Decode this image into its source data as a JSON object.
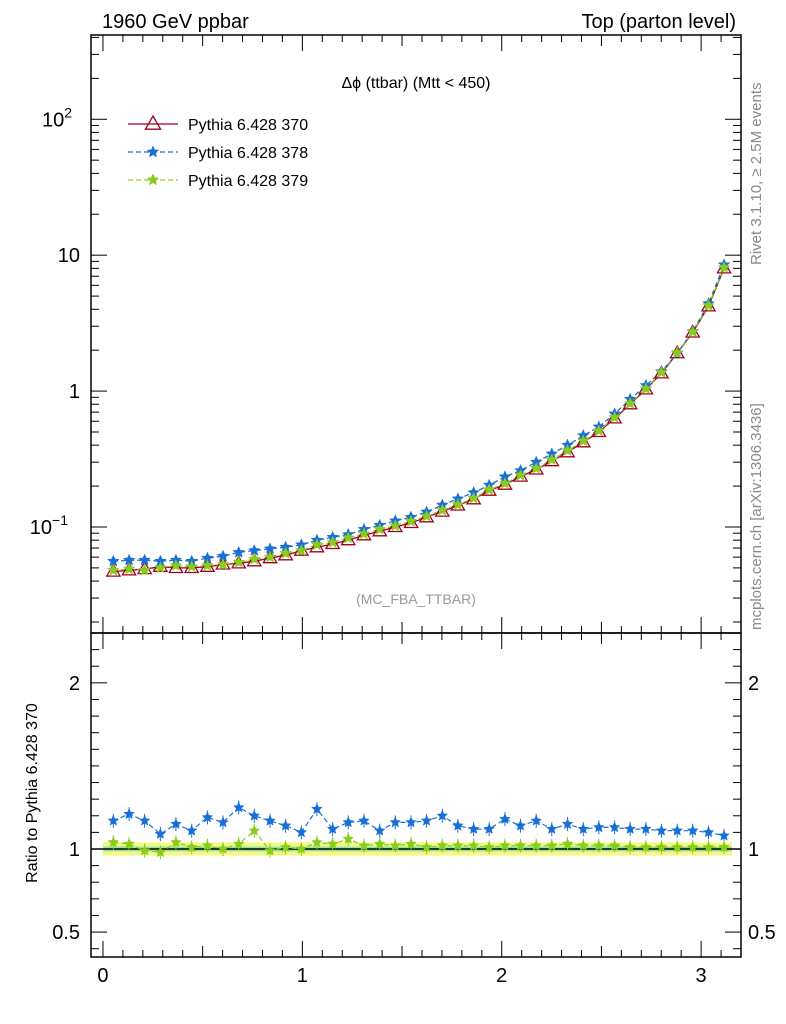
{
  "header": {
    "left": "1960 GeV ppbar",
    "right": "Top (parton level)"
  },
  "side": {
    "rivet": "Rivet 3.1.10, ≥ 2.5M events",
    "mcplots": "mcplots.cern.ch [arXiv:1306.3436]"
  },
  "chart_data": [
    {
      "type": "line",
      "title": "Δϕ (ttbar) (Mtt < 450)",
      "watermark": "(MC_FBA_TTBAR)",
      "xlim": [
        -0.06,
        3.2
      ],
      "ylim_log10": [
        -1.78,
        2.62
      ],
      "yscale": "log",
      "y_ticks": [
        {
          "value": 100,
          "label": "10",
          "sup": "2"
        },
        {
          "value": 10,
          "label": "10",
          "sup": ""
        },
        {
          "value": 1,
          "label": "1",
          "sup": ""
        },
        {
          "value": 0.1,
          "label": "10",
          "sup": "−1"
        }
      ],
      "legend_placement": "top-left",
      "x": [
        0.052,
        0.131,
        0.209,
        0.288,
        0.366,
        0.445,
        0.524,
        0.602,
        0.681,
        0.759,
        0.838,
        0.916,
        0.995,
        1.073,
        1.152,
        1.23,
        1.309,
        1.388,
        1.466,
        1.545,
        1.623,
        1.702,
        1.78,
        1.859,
        1.937,
        2.016,
        2.094,
        2.173,
        2.251,
        2.33,
        2.409,
        2.487,
        2.566,
        2.644,
        2.723,
        2.801,
        2.88,
        2.958,
        3.037,
        3.115
      ],
      "series": [
        {
          "name": "Pythia 6.428 370",
          "color": "#a00020",
          "marker": "triangle-open",
          "dash": "solid",
          "values": [
            0.047,
            0.048,
            0.049,
            0.051,
            0.05,
            0.05,
            0.051,
            0.053,
            0.054,
            0.056,
            0.059,
            0.062,
            0.067,
            0.071,
            0.075,
            0.08,
            0.087,
            0.093,
            0.1,
            0.107,
            0.118,
            0.13,
            0.144,
            0.16,
            0.185,
            0.205,
            0.235,
            0.265,
            0.305,
            0.355,
            0.42,
            0.5,
            0.63,
            0.8,
            1.03,
            1.35,
            1.9,
            2.7,
            4.2,
            8.0
          ]
        },
        {
          "name": "Pythia 6.428 378",
          "color": "#1a6fd6",
          "marker": "star",
          "dash": "dashed",
          "values": [
            0.056,
            0.057,
            0.057,
            0.056,
            0.057,
            0.056,
            0.059,
            0.061,
            0.065,
            0.067,
            0.069,
            0.071,
            0.074,
            0.08,
            0.084,
            0.088,
            0.096,
            0.103,
            0.111,
            0.118,
            0.129,
            0.145,
            0.161,
            0.179,
            0.203,
            0.234,
            0.26,
            0.3,
            0.345,
            0.4,
            0.47,
            0.545,
            0.68,
            0.87,
            1.1,
            1.39,
            1.9,
            2.75,
            4.4,
            8.5
          ]
        },
        {
          "name": "Pythia 6.428 379",
          "color": "#88cc1c",
          "marker": "star",
          "dash": "dashed",
          "values": [
            0.048,
            0.049,
            0.048,
            0.05,
            0.052,
            0.051,
            0.052,
            0.053,
            0.055,
            0.058,
            0.06,
            0.064,
            0.067,
            0.074,
            0.077,
            0.083,
            0.089,
            0.096,
            0.102,
            0.11,
            0.12,
            0.133,
            0.146,
            0.163,
            0.188,
            0.209,
            0.24,
            0.27,
            0.312,
            0.365,
            0.43,
            0.51,
            0.64,
            0.81,
            1.04,
            1.37,
            1.92,
            2.73,
            4.26,
            8.1
          ]
        }
      ]
    },
    {
      "type": "line",
      "ylabel": "Ratio to Pythia 6.428 370",
      "xlim": [
        -0.06,
        3.2
      ],
      "ylim": [
        0.35,
        2.3
      ],
      "x_ticks": [
        "0",
        "1",
        "2",
        "3"
      ],
      "y_ticks": [
        {
          "value": 2,
          "label": "2"
        },
        {
          "value": 1,
          "label": "1"
        },
        {
          "value": 0.5,
          "label": "0.5"
        }
      ],
      "reference_line": 1.0,
      "band_yellow": [
        0.96,
        1.04
      ],
      "band_green": [
        0.985,
        1.015
      ],
      "series": [
        {
          "name": "Pythia 6.428 378",
          "color": "#1a6fd6",
          "marker": "star",
          "dash": "dashed",
          "values": [
            1.17,
            1.21,
            1.17,
            1.09,
            1.15,
            1.11,
            1.19,
            1.16,
            1.25,
            1.2,
            1.17,
            1.14,
            1.1,
            1.24,
            1.12,
            1.16,
            1.17,
            1.11,
            1.16,
            1.16,
            1.17,
            1.2,
            1.14,
            1.12,
            1.12,
            1.18,
            1.14,
            1.17,
            1.12,
            1.15,
            1.12,
            1.13,
            1.13,
            1.12,
            1.12,
            1.11,
            1.11,
            1.11,
            1.1,
            1.08
          ]
        },
        {
          "name": "Pythia 6.428 379",
          "color": "#88cc1c",
          "marker": "star",
          "dash": "dashed",
          "values": [
            1.04,
            1.03,
            0.99,
            0.98,
            1.04,
            1.01,
            1.02,
            1.0,
            1.03,
            1.11,
            0.99,
            1.01,
            1.0,
            1.04,
            1.03,
            1.06,
            1.02,
            1.03,
            1.02,
            1.03,
            1.01,
            1.02,
            1.02,
            1.02,
            1.01,
            1.02,
            1.02,
            1.02,
            1.02,
            1.03,
            1.02,
            1.02,
            1.02,
            1.01,
            1.01,
            1.01,
            1.01,
            1.01,
            1.01,
            1.01
          ]
        }
      ]
    }
  ]
}
